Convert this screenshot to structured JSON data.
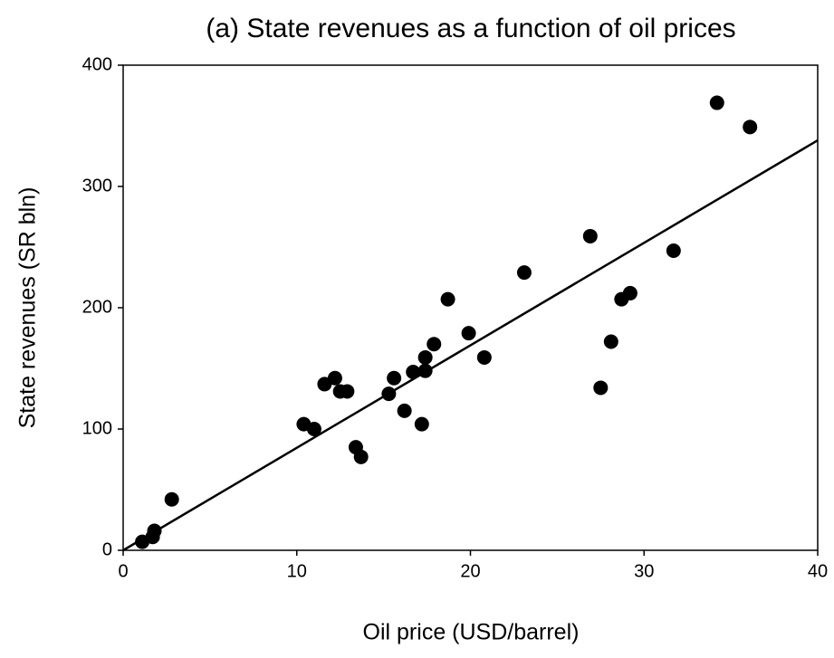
{
  "chart_data": {
    "type": "scatter",
    "title": "(a) State revenues as a function of oil prices",
    "x_label": "Oil price (USD/barrel)",
    "y_label": "State revenues (SR bln)",
    "x": [
      1.1,
      1.7,
      1.8,
      2.8,
      10.4,
      11.0,
      11.6,
      12.2,
      12.5,
      12.9,
      13.4,
      13.7,
      15.3,
      15.6,
      16.2,
      16.7,
      17.2,
      17.4,
      17.4,
      17.9,
      18.7,
      19.9,
      20.8,
      23.1,
      26.9,
      27.5,
      28.1,
      28.7,
      29.2,
      31.7,
      34.2,
      36.1
    ],
    "values": [
      7,
      11,
      16,
      42,
      104,
      100,
      137,
      142,
      131,
      131,
      85,
      77,
      129,
      142,
      115,
      147,
      104,
      159,
      148,
      170,
      207,
      179,
      159,
      229,
      259,
      134,
      172,
      207,
      212,
      247,
      369,
      349
    ],
    "color": "#000000",
    "trend_line": {
      "x": [
        0,
        40
      ],
      "values": [
        0,
        338
      ],
      "color": "#000000"
    },
    "xlim": [
      0,
      40
    ],
    "xticks": [
      0,
      10,
      20,
      30,
      40
    ],
    "ylim": [
      0,
      400
    ],
    "yticks": [
      0,
      100,
      200,
      300,
      400
    ],
    "grid": false
  }
}
